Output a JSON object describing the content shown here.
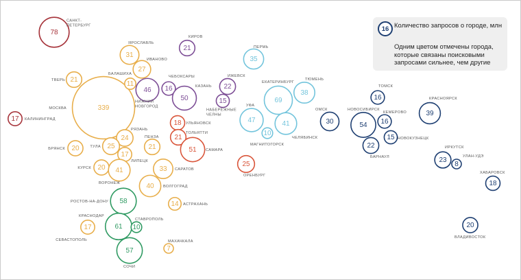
{
  "colors": {
    "red": "#a6333a",
    "orange": "#e8ae4a",
    "purple": "#7d4e96",
    "coral": "#d9553a",
    "lightblue": "#72c4dc",
    "navy": "#1e3f72",
    "green": "#2f9a62"
  },
  "legend": {
    "sample_value": "16",
    "title": "Количество запросов о городе, млн",
    "note": "Одним цветом отмечены города, которые связаны поисковыми запросами сильнее, чем другие"
  },
  "chart_data": {
    "type": "bubble",
    "title": "",
    "unit": "млн",
    "points": [
      {
        "city": "САНКТ-ПЕТЕРБУРГ",
        "value": 78,
        "group": "red"
      },
      {
        "city": "КАЛИНИНГРАД",
        "value": 17,
        "group": "red"
      },
      {
        "city": "МОСКВА",
        "value": 339,
        "group": "orange"
      },
      {
        "city": "ЯРОСЛАВЛЬ",
        "value": 31,
        "group": "orange"
      },
      {
        "city": "ИВАНОВО",
        "value": 27,
        "group": "orange"
      },
      {
        "city": "БАЛАШИХА",
        "value": 11,
        "group": "orange"
      },
      {
        "city": "ТВЕРЬ",
        "value": 21,
        "group": "orange"
      },
      {
        "city": "РЯЗАНЬ",
        "value": 24,
        "group": "orange"
      },
      {
        "city": "ТУЛА",
        "value": 25,
        "group": "orange"
      },
      {
        "city": "ЛИПЕЦК",
        "value": 17,
        "group": "orange"
      },
      {
        "city": "БРЯНСК",
        "value": 20,
        "group": "orange"
      },
      {
        "city": "КУРСК",
        "value": 20,
        "group": "orange"
      },
      {
        "city": "ВОРОНЕЖ",
        "value": 41,
        "group": "orange"
      },
      {
        "city": "ПЕНЗА",
        "value": 21,
        "group": "orange"
      },
      {
        "city": "САРАТОВ",
        "value": 33,
        "group": "orange"
      },
      {
        "city": "ВОЛГОГРАД",
        "value": 40,
        "group": "orange"
      },
      {
        "city": "АСТРАХАНЬ",
        "value": 14,
        "group": "orange"
      },
      {
        "city": "СЕВАСТОПОЛЬ",
        "value": 17,
        "group": "orange"
      },
      {
        "city": "МАХАЧКАЛА",
        "value": 7,
        "group": "orange"
      },
      {
        "city": "КИРОВ",
        "value": 21,
        "group": "purple"
      },
      {
        "city": "НИЖНИЙ НОВГОРОД",
        "value": 46,
        "group": "purple"
      },
      {
        "city": "ЧЕБОКСАРЫ",
        "value": 16,
        "group": "purple"
      },
      {
        "city": "КАЗАНЬ",
        "value": 50,
        "group": "purple"
      },
      {
        "city": "ИЖЕВСК",
        "value": 22,
        "group": "purple"
      },
      {
        "city": "НАБЕРЕЖНЫЕ ЧЕЛНЫ",
        "value": 15,
        "group": "purple"
      },
      {
        "city": "УЛЬЯНОВСК",
        "value": 18,
        "group": "coral"
      },
      {
        "city": "ТОЛЬЯТТИ",
        "value": 21,
        "group": "coral"
      },
      {
        "city": "САМАРА",
        "value": 51,
        "group": "coral"
      },
      {
        "city": "ОРЕНБУРГ",
        "value": 25,
        "group": "coral"
      },
      {
        "city": "ПЕРМЬ",
        "value": 35,
        "group": "lightblue"
      },
      {
        "city": "ЕКАТЕРИНБУРГ",
        "value": 69,
        "group": "lightblue"
      },
      {
        "city": "ТЮМЕНЬ",
        "value": 38,
        "group": "lightblue"
      },
      {
        "city": "УФА",
        "value": 47,
        "group": "lightblue"
      },
      {
        "city": "МАГНИТОГОРСК",
        "value": 10,
        "group": "lightblue"
      },
      {
        "city": "ЧЕЛЯБИНСК",
        "value": 41,
        "group": "lightblue"
      },
      {
        "city": "ОМСК",
        "value": 30,
        "group": "navy"
      },
      {
        "city": "НОВОСИБИРСК",
        "value": 54,
        "group": "navy"
      },
      {
        "city": "ТОМСК",
        "value": 16,
        "group": "navy"
      },
      {
        "city": "КЕМЕРОВО",
        "value": 16,
        "group": "navy"
      },
      {
        "city": "НОВОКУЗНЕЦК",
        "value": 15,
        "group": "navy"
      },
      {
        "city": "БАРНАУЛ",
        "value": 22,
        "group": "navy"
      },
      {
        "city": "КРАСНОЯРСК",
        "value": 39,
        "group": "navy"
      },
      {
        "city": "ИРКУТСК",
        "value": 23,
        "group": "navy"
      },
      {
        "city": "УЛАН-УДЭ",
        "value": 8,
        "group": "navy"
      },
      {
        "city": "ХАБАРОВСК",
        "value": 18,
        "group": "navy"
      },
      {
        "city": "ВЛАДИВОСТОК",
        "value": 20,
        "group": "navy"
      },
      {
        "city": "РОСТОВ-НА-ДОНУ",
        "value": 58,
        "group": "green"
      },
      {
        "city": "КРАСНОДАР",
        "value": 61,
        "group": "green"
      },
      {
        "city": "СТАВРОПОЛЬ",
        "value": 10,
        "group": "green"
      },
      {
        "city": "СОЧИ",
        "value": 57,
        "group": "green"
      }
    ]
  }
}
